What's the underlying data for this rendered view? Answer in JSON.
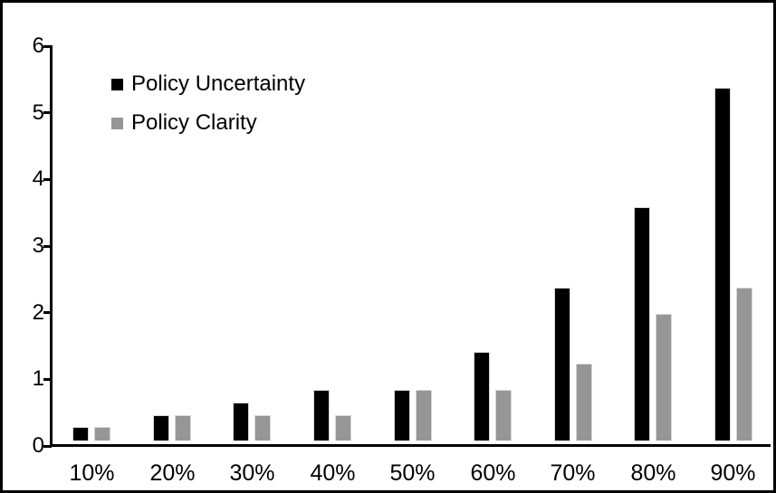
{
  "chart_data": {
    "type": "bar",
    "title": "",
    "xlabel": "",
    "ylabel": "",
    "categories": [
      "10%",
      "20%",
      "30%",
      "40%",
      "50%",
      "60%",
      "70%",
      "80%",
      "90%"
    ],
    "series": [
      {
        "name": "Policy Uncertainty",
        "color": "#000000",
        "values": [
          0.2,
          0.38,
          0.57,
          0.76,
          0.76,
          1.33,
          2.3,
          3.5,
          5.3
        ]
      },
      {
        "name": "Policy Clarity",
        "color": "#969696",
        "values": [
          0.2,
          0.38,
          0.38,
          0.38,
          0.76,
          0.76,
          1.15,
          1.9,
          2.3
        ]
      }
    ],
    "ylim": [
      0,
      6
    ],
    "yticks": [
      0,
      1,
      2,
      3,
      4,
      5,
      6
    ],
    "grid": false,
    "legend_position": "inside-top-left",
    "frame_color": "#000000",
    "background_color": "#ffffff"
  }
}
